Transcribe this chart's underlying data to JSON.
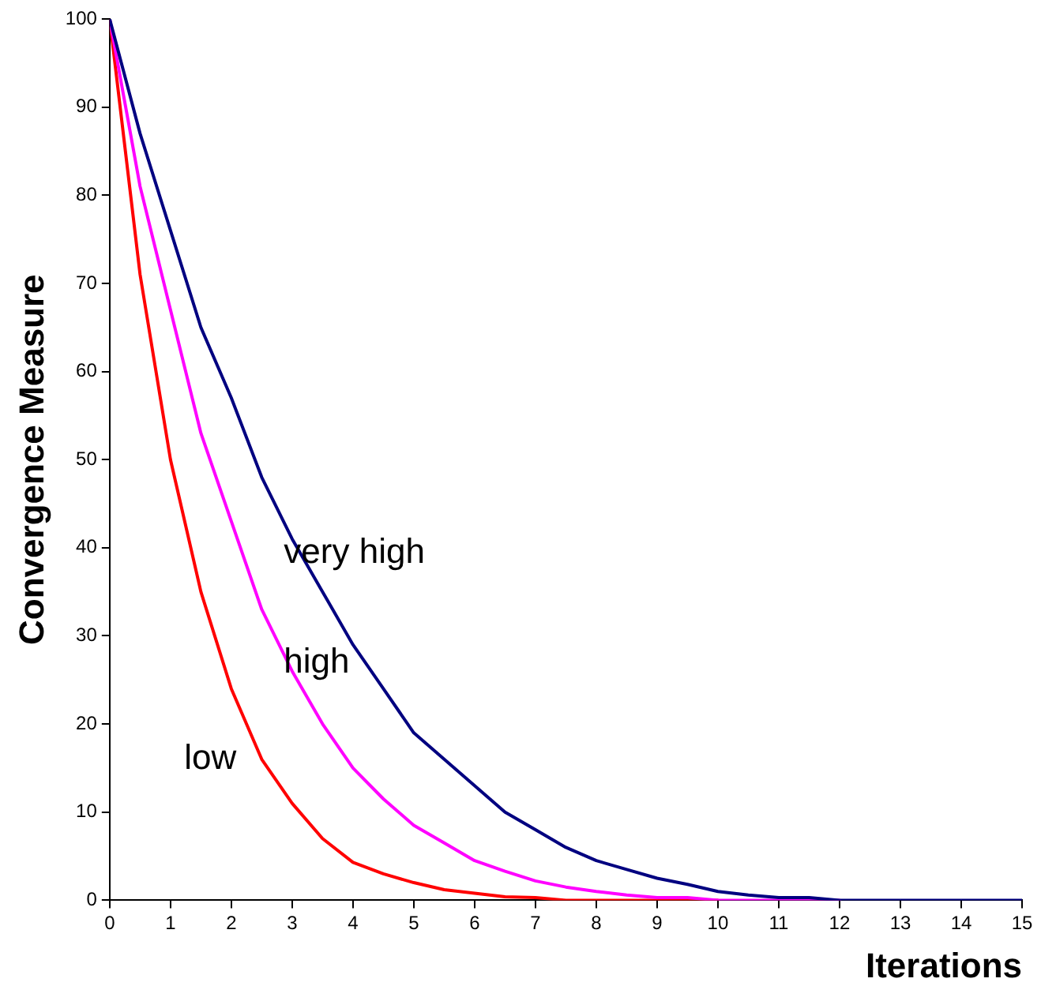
{
  "chart_data": {
    "type": "line",
    "xlabel": "Iterations",
    "ylabel": "Convergence Measure",
    "x": [
      0,
      0.5,
      1,
      1.5,
      2,
      2.5,
      3,
      3.5,
      4,
      4.5,
      5,
      5.5,
      6,
      6.5,
      7,
      7.5,
      8,
      8.5,
      9,
      9.5,
      10,
      10.5,
      11,
      11.5,
      12,
      12.5,
      13,
      13.5,
      14,
      14.5,
      15
    ],
    "series": [
      {
        "name": "very high",
        "color": "#000080",
        "values": [
          100,
          87,
          76,
          65,
          57,
          48,
          41,
          35,
          29,
          24,
          19,
          16,
          13,
          10,
          8,
          6,
          4.5,
          3.5,
          2.5,
          1.8,
          1,
          0.6,
          0.3,
          0.3,
          0,
          0,
          0,
          0,
          0,
          0,
          0
        ]
      },
      {
        "name": "high",
        "color": "#ff00ff",
        "values": [
          100,
          81,
          67,
          53,
          43,
          33,
          26,
          20,
          15,
          11.5,
          8.5,
          6.5,
          4.5,
          3.3,
          2.2,
          1.5,
          1,
          0.6,
          0.3,
          0.3,
          0,
          0,
          0,
          0,
          0,
          null,
          null,
          null,
          null,
          null,
          null
        ]
      },
      {
        "name": "low",
        "color": "#ff0000",
        "values": [
          100,
          71,
          50,
          35,
          24,
          16,
          11,
          7,
          4.3,
          3,
          2,
          1.2,
          0.8,
          0.4,
          0.3,
          0,
          0,
          0,
          0,
          0,
          0,
          null,
          null,
          null,
          null,
          null,
          null,
          null,
          null,
          null,
          null
        ]
      }
    ],
    "xlim": [
      0,
      15
    ],
    "xticks": [
      0,
      1,
      2,
      3,
      4,
      5,
      6,
      7,
      8,
      9,
      10,
      11,
      12,
      13,
      14,
      15
    ],
    "ylim": [
      0,
      100
    ],
    "yticks": [
      0,
      10,
      20,
      30,
      40,
      50,
      60,
      70,
      80,
      90,
      100
    ],
    "grid": false,
    "legend": false,
    "marker": "none",
    "line_style": "solid"
  }
}
